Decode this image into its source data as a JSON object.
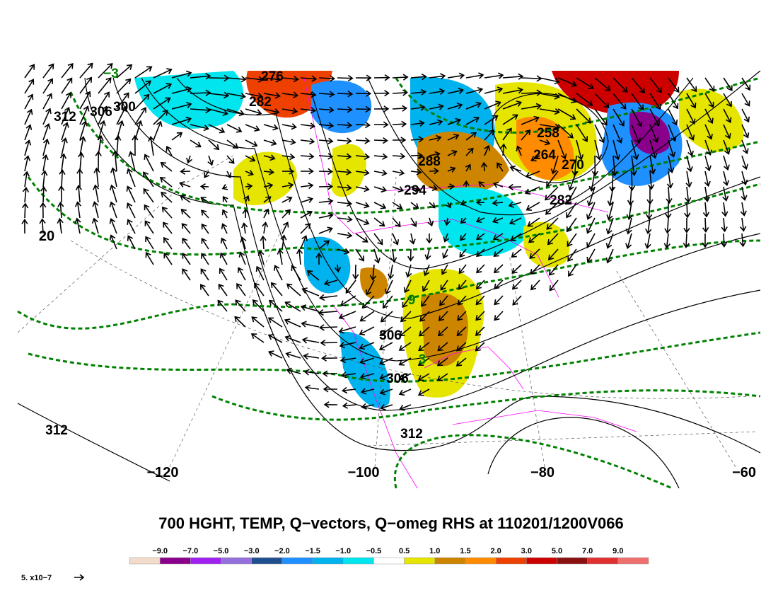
{
  "title": "700 HGHT, TEMP, Q−vectors, Q−omeg RHS at 110201/1200V066",
  "longitude_labels": [
    "−120",
    "−100",
    "−80",
    "−60"
  ],
  "latitude_labels": [
    "20"
  ],
  "height_labels": [
    "276",
    "282",
    "312",
    "306",
    "300",
    "288",
    "294",
    "258",
    "264",
    "270",
    "282",
    "306",
    "306",
    "312",
    "312"
  ],
  "temperature_labels": [
    "−3",
    "9",
    "3"
  ],
  "colorbar": {
    "labels": [
      "−9.0",
      "−7.0",
      "−5.0",
      "−3.0",
      "−2.0",
      "−1.5",
      "−1.0",
      "−0.5",
      "0.5",
      "1.0",
      "1.5",
      "2.0",
      "3.0",
      "5.0",
      "7.0",
      "9.0"
    ],
    "colors": [
      "#f3dccb",
      "#8b008b",
      "#a020f0",
      "#9370db",
      "#1f4f8f",
      "#1e90ff",
      "#00b2ee",
      "#00e5ee",
      "#ffffff",
      "#e5e500",
      "#cd8500",
      "#ff8c00",
      "#ee4000",
      "#cd0000",
      "#8b1010",
      "#e03030",
      "#f07070"
    ]
  },
  "vector_scale_label": "5. x10−7"
}
